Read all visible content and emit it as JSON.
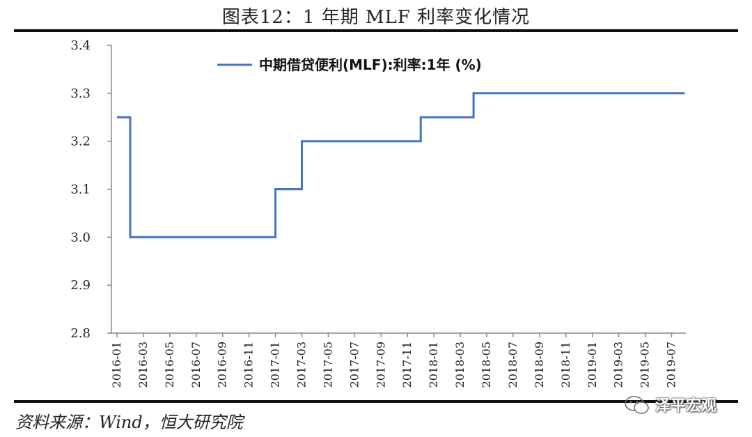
{
  "figure": {
    "title": "图表12：1 年期 MLF 利率变化情况",
    "source": "资料来源：Wind，恒大研究院",
    "watermark": "泽平宏观"
  },
  "colors": {
    "series": "#4472C4",
    "axis": "#888888",
    "rule": "#111111"
  },
  "chart_data": {
    "type": "line",
    "step": true,
    "ylim": [
      2.8,
      3.4
    ],
    "yticks": [
      "3.4",
      "3.3",
      "3.2",
      "3.1",
      "3.0",
      "2.9",
      "2.8"
    ],
    "xticks": [
      "2016-01",
      "2016-03",
      "2016-05",
      "2016-07",
      "2016-09",
      "2016-11",
      "2017-01",
      "2017-03",
      "2017-05",
      "2017-07",
      "2017-09",
      "2017-11",
      "2018-01",
      "2018-03",
      "2018-05",
      "2018-07",
      "2018-09",
      "2018-11",
      "2019-01",
      "2019-03",
      "2019-05",
      "2019-07"
    ],
    "legend": "top-center",
    "series": [
      {
        "name": "中期借贷便利(MLF):利率:1年 (%)",
        "points": [
          {
            "x": "2016-01",
            "y": 3.25
          },
          {
            "x": "2016-02",
            "y": 3.25
          },
          {
            "x": "2016-02",
            "y": 3.0
          },
          {
            "x": "2017-01",
            "y": 3.0
          },
          {
            "x": "2017-01",
            "y": 3.1
          },
          {
            "x": "2017-03",
            "y": 3.1
          },
          {
            "x": "2017-03",
            "y": 3.2
          },
          {
            "x": "2017-12",
            "y": 3.2
          },
          {
            "x": "2017-12",
            "y": 3.25
          },
          {
            "x": "2018-04",
            "y": 3.25
          },
          {
            "x": "2018-04",
            "y": 3.3
          },
          {
            "x": "2019-08",
            "y": 3.3
          }
        ]
      }
    ]
  }
}
